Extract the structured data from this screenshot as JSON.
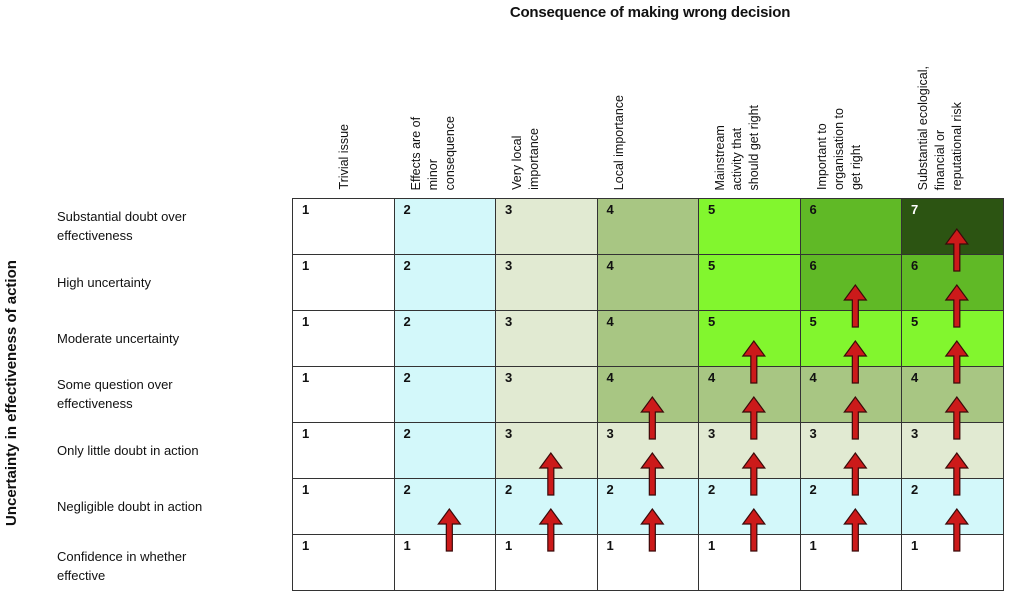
{
  "title": "Consequence  of making wrong decision",
  "y_axis_title": "Uncertainty in effectiveness of action",
  "columns": [
    "Trivial issue",
    "Effects are of\nminor\nconsequence",
    "Very local\nimportance",
    "Local importance",
    "Mainstream\nactivity that\nshould get right",
    "Important to\norganisation to\nget right",
    "Substantial ecological,\nfinancial or\nreputational risk"
  ],
  "rows": [
    "Substantial doubt over\neffectiveness",
    "High uncertainty",
    "Moderate uncertainty",
    "Some question over\neffectiveness",
    "Only little doubt in action",
    "Negligible doubt in action",
    "Confidence in whether\neffective"
  ],
  "matrix": [
    [
      1,
      2,
      3,
      4,
      5,
      6,
      7
    ],
    [
      1,
      2,
      3,
      4,
      5,
      6,
      6
    ],
    [
      1,
      2,
      3,
      4,
      5,
      5,
      5
    ],
    [
      1,
      2,
      3,
      4,
      4,
      4,
      4
    ],
    [
      1,
      2,
      3,
      3,
      3,
      3,
      3
    ],
    [
      1,
      2,
      2,
      2,
      2,
      2,
      2
    ],
    [
      1,
      1,
      1,
      1,
      1,
      1,
      1
    ]
  ],
  "level_colors": {
    "1": "#ffffff",
    "2": "#d3f8fa",
    "3": "#e1ead2",
    "4": "#a8c683",
    "5": "#82f62e",
    "6": "#60b926",
    "7": "#2c5412"
  },
  "arrow_color": "#cc1a1a"
}
